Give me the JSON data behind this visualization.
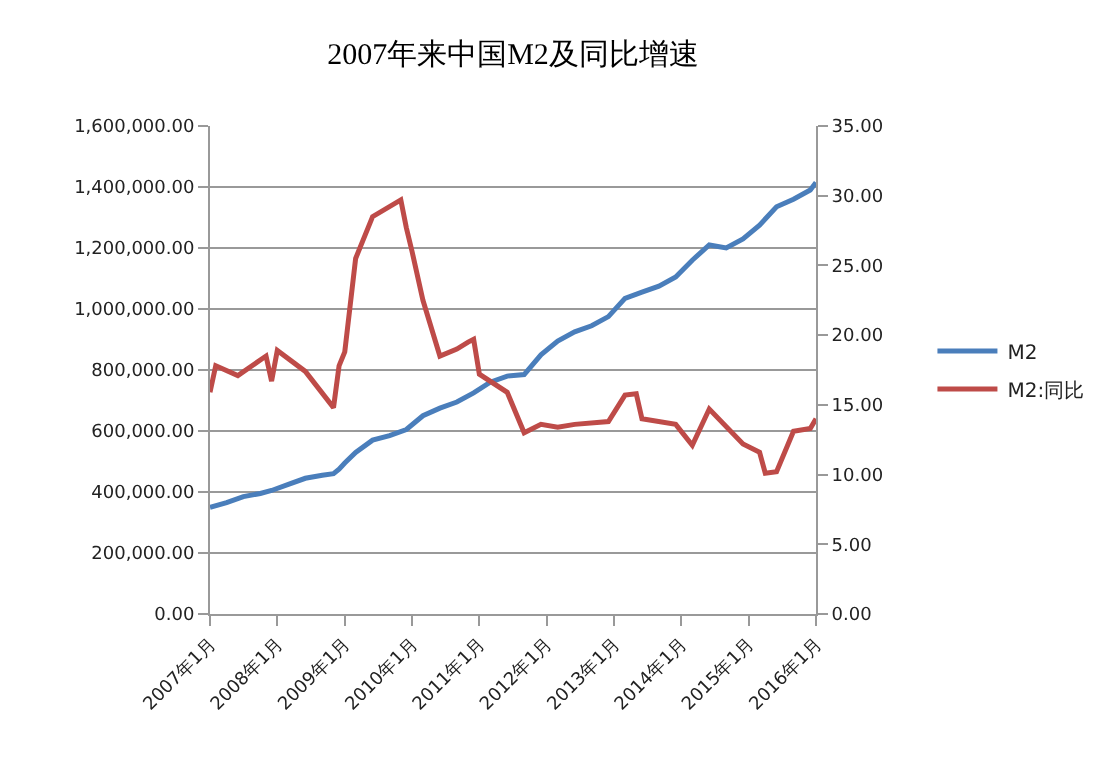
{
  "chart_data": {
    "type": "line",
    "title": "2007年来中国M2及同比增速",
    "x": [
      "2007-01",
      "2007-04",
      "2007-07",
      "2007-10",
      "2007-12",
      "2008-03",
      "2008-06",
      "2008-09",
      "2008-11",
      "2008-12",
      "2009-01",
      "2009-03",
      "2009-06",
      "2009-09",
      "2009-12",
      "2010-03",
      "2010-06",
      "2010-09",
      "2010-12",
      "2011-03",
      "2011-06",
      "2011-09",
      "2011-12",
      "2012-03",
      "2012-06",
      "2012-09",
      "2012-12",
      "2013-03",
      "2013-06",
      "2013-09",
      "2013-12",
      "2014-03",
      "2014-06",
      "2014-09",
      "2014-12",
      "2015-03",
      "2015-06",
      "2015-09",
      "2015-12",
      "2016-01"
    ],
    "series": [
      {
        "name": "M2",
        "color": "#4a7ebb",
        "values": [
          350000,
          365000,
          385000,
          395000,
          405000,
          425000,
          445000,
          455000,
          460000,
          475000,
          495000,
          530000,
          570000,
          585000,
          605000,
          650000,
          675000,
          695000,
          725000,
          760000,
          780000,
          785000,
          850000,
          895000,
          925000,
          945000,
          975000,
          1035000,
          1055000,
          1075000,
          1105000,
          1160000,
          1210000,
          1200000,
          1230000,
          1275000,
          1335000,
          1360000,
          1390000,
          1415000
        ]
      },
      {
        "name": "M2:同比",
        "color": "#be4b48",
        "axis": "y2",
        "x": [
          "2007-01",
          "2007-02",
          "2007-06",
          "2007-11",
          "2007-12",
          "2008-01",
          "2008-06",
          "2008-11",
          "2008-12",
          "2009-01",
          "2009-03",
          "2009-06",
          "2009-11",
          "2009-12",
          "2010-01",
          "2010-03",
          "2010-06",
          "2010-09",
          "2010-11",
          "2010-12",
          "2011-01",
          "2011-06",
          "2011-09",
          "2011-12",
          "2012-03",
          "2012-06",
          "2012-12",
          "2013-03",
          "2013-05",
          "2013-06",
          "2013-12",
          "2014-03",
          "2014-06",
          "2014-12",
          "2015-03",
          "2015-04",
          "2015-06",
          "2015-09",
          "2015-12",
          "2016-01"
        ],
        "values": [
          15.9,
          17.8,
          17.1,
          18.5,
          16.7,
          18.9,
          17.4,
          14.8,
          17.8,
          18.8,
          25.5,
          28.5,
          29.7,
          27.7,
          26.0,
          22.5,
          18.5,
          19.0,
          19.5,
          19.7,
          17.2,
          15.9,
          13.0,
          13.6,
          13.4,
          13.6,
          13.8,
          15.7,
          15.8,
          14.0,
          13.6,
          12.1,
          14.7,
          12.2,
          11.6,
          10.1,
          10.2,
          13.1,
          13.3,
          14.0
        ]
      }
    ],
    "xlim": [
      "2007-01",
      "2016-01"
    ],
    "xticks": [
      {
        "value": "2007-01",
        "label": "2007年1月"
      },
      {
        "value": "2008-01",
        "label": "2008年1月"
      },
      {
        "value": "2009-01",
        "label": "2009年1月"
      },
      {
        "value": "2010-01",
        "label": "2010年1月"
      },
      {
        "value": "2011-01",
        "label": "2011年1月"
      },
      {
        "value": "2012-01",
        "label": "2012年1月"
      },
      {
        "value": "2013-01",
        "label": "2013年1月"
      },
      {
        "value": "2014-01",
        "label": "2014年1月"
      },
      {
        "value": "2015-01",
        "label": "2015年1月"
      },
      {
        "value": "2016-01",
        "label": "2016年1月"
      }
    ],
    "ylim": [
      0,
      1600000
    ],
    "yticks": [
      {
        "value": 0,
        "label": "0.00"
      },
      {
        "value": 200000,
        "label": "200,000.00"
      },
      {
        "value": 400000,
        "label": "400,000.00"
      },
      {
        "value": 600000,
        "label": "600,000.00"
      },
      {
        "value": 800000,
        "label": "800,000.00"
      },
      {
        "value": 1000000,
        "label": "1,000,000.00"
      },
      {
        "value": 1200000,
        "label": "1,200,000.00"
      },
      {
        "value": 1400000,
        "label": "1,400,000.00"
      },
      {
        "value": 1600000,
        "label": "1,600,000.00"
      }
    ],
    "y2lim": [
      0,
      35
    ],
    "y2ticks": [
      {
        "value": 0,
        "label": "0.00"
      },
      {
        "value": 5,
        "label": "5.00"
      },
      {
        "value": 10,
        "label": "10.00"
      },
      {
        "value": 15,
        "label": "15.00"
      },
      {
        "value": 20,
        "label": "20.00"
      },
      {
        "value": 25,
        "label": "25.00"
      },
      {
        "value": 30,
        "label": "30.00"
      },
      {
        "value": 35,
        "label": "35.00"
      }
    ],
    "grid": "y",
    "legend": "right",
    "marker": "none",
    "line_style": "solid"
  }
}
